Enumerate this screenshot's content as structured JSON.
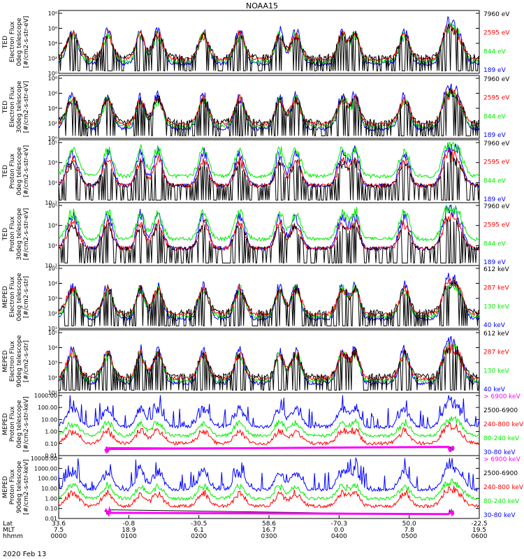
{
  "title": "NOAA15",
  "date_label": "2020 Feb 13",
  "colors": {
    "black": "#000000",
    "red": "#ff0000",
    "green": "#00ee00",
    "blue": "#0000ff",
    "magenta": "#ff00ff"
  },
  "xaxis": {
    "row_labels": [
      "Lat",
      "MLT",
      "hhmm"
    ],
    "ticks": [
      {
        "lat": "33.6",
        "mlt": "7.5",
        "hhmm": "0000"
      },
      {
        "lat": "-0.8",
        "mlt": "18.9",
        "hhmm": "0100"
      },
      {
        "lat": "-30.5",
        "mlt": "6.1",
        "hhmm": "0200"
      },
      {
        "lat": "58.6",
        "mlt": "16.7",
        "hhmm": "0300"
      },
      {
        "lat": "-70.3",
        "mlt": "0.0",
        "hhmm": "0400"
      },
      {
        "lat": "50.0",
        "mlt": "7.8",
        "hhmm": "0500"
      },
      {
        "lat": "-22.5",
        "mlt": "19.5",
        "hhmm": "0600"
      }
    ]
  },
  "panels": [
    {
      "ylabel": [
        "TED",
        "Electron Flux",
        "0deg telescope",
        "[#/cm2-s-str-eV]"
      ],
      "tick_labels": [
        "10⁰",
        "10²",
        "10⁴",
        "10⁶",
        "10⁸"
      ],
      "legend": [
        {
          "text": "7960 eV",
          "color": "black"
        },
        {
          "text": "2595 eV",
          "color": "red"
        },
        {
          "text": "844 eV",
          "color": "green"
        },
        {
          "text": "189 eV",
          "color": "blue"
        }
      ]
    },
    {
      "ylabel": [
        "TED",
        "Electron Flux",
        "30deg telescope",
        "[#/cm2-s-str-eV]"
      ],
      "tick_labels": [
        "10⁰",
        "10²",
        "10⁴",
        "10⁶",
        "10⁸"
      ],
      "legend": [
        {
          "text": "7960 eV",
          "color": "black"
        },
        {
          "text": "2595 eV",
          "color": "red"
        },
        {
          "text": "844 eV",
          "color": "green"
        },
        {
          "text": "189 eV",
          "color": "blue"
        }
      ]
    },
    {
      "ylabel": [
        "TED",
        "Proton Flux",
        "0deg telescope",
        "[#/cm2-s-str-eV]"
      ],
      "tick_labels": [
        "10⁻¹",
        "10¹",
        "10³",
        "10⁵"
      ],
      "legend": [
        {
          "text": "7960 eV",
          "color": "black"
        },
        {
          "text": "2595 eV",
          "color": "red"
        },
        {
          "text": "844 eV",
          "color": "green"
        },
        {
          "text": "189 eV",
          "color": "blue"
        }
      ]
    },
    {
      "ylabel": [
        "TED",
        "Proton Flux",
        "30deg telescope",
        "[#/cm2-s-str-eV]"
      ],
      "tick_labels": [
        "10⁻¹",
        "10¹",
        "10³",
        "10⁵"
      ],
      "legend": [
        {
          "text": "7960 eV",
          "color": "black"
        },
        {
          "text": "2595 eV",
          "color": "red"
        },
        {
          "text": "844 eV",
          "color": "green"
        },
        {
          "text": "189 eV",
          "color": "blue"
        }
      ]
    },
    {
      "ylabel": [
        "MEPED",
        "Electron Flux",
        "0deg telescope",
        "[#/cm2-s-str]"
      ],
      "tick_labels": [
        "10¹",
        "10²",
        "10³",
        "10⁴",
        "10⁵"
      ],
      "legend": [
        {
          "text": "612 keV",
          "color": "black"
        },
        {
          "text": "287 keV",
          "color": "red"
        },
        {
          "text": "130 keV",
          "color": "green"
        },
        {
          "text": "40 keV",
          "color": "blue"
        }
      ]
    },
    {
      "ylabel": [
        "MEPED",
        "Electron Flux",
        "90deg telescope",
        "[#/cm2-s-str]"
      ],
      "tick_labels": [
        "10¹",
        "10²",
        "10³",
        "10⁴",
        "10⁵"
      ],
      "legend": [
        {
          "text": "612 keV",
          "color": "black"
        },
        {
          "text": "287 keV",
          "color": "red"
        },
        {
          "text": "130 keV",
          "color": "green"
        },
        {
          "text": "40 keV",
          "color": "blue"
        }
      ]
    },
    {
      "ylabel": [
        "MEPED",
        "Proton Flux",
        "0deg telescope",
        "[#/cm2-s-str-keV]"
      ],
      "tick_labels": [
        "0.01",
        "0.10",
        "1.00",
        "10.00",
        "100.00",
        "1000.00"
      ],
      "legend": [
        {
          "text": "> 6900 keV",
          "color": "magenta"
        },
        {
          "text": "2500-6900",
          "color": "black"
        },
        {
          "text": "240-800 keV",
          "color": "red"
        },
        {
          "text": "80-240 keV",
          "color": "green"
        },
        {
          "text": "30-80 keV",
          "color": "blue"
        }
      ]
    },
    {
      "ylabel": [
        "MEPED",
        "Proton Flux",
        "90deg telescope",
        "[#/cm2-s-str-keV]"
      ],
      "tick_labels": [
        "0.01",
        "0.10",
        "1.00",
        "10.00",
        "100.00",
        "1000.00",
        "10000.00"
      ],
      "legend": [
        {
          "text": "> 6900 keV",
          "color": "magenta"
        },
        {
          "text": "2500-6900",
          "color": "black"
        },
        {
          "text": "240-800 keV",
          "color": "red"
        },
        {
          "text": "80-240 keV",
          "color": "green"
        },
        {
          "text": "30-80 keV",
          "color": "blue"
        }
      ]
    }
  ],
  "chart_data": {
    "type": "line",
    "title": "NOAA15",
    "x_range": [
      "0000",
      "0600"
    ],
    "pass_peaks_hhmm": [
      "0012",
      "0042",
      "0110",
      "0125",
      "0204",
      "0235",
      "0309",
      "0323",
      "0403",
      "0414",
      "0456",
      "0532",
      "0541"
    ],
    "panels": [
      {
        "name": "TED Electron Flux 0deg telescope",
        "ylim": [
          1,
          100000000
        ],
        "log": true,
        "series": [
          "7960 eV",
          "2595 eV",
          "844 eV",
          "189 eV"
        ]
      },
      {
        "name": "TED Electron Flux 30deg telescope",
        "ylim": [
          1,
          100000000
        ],
        "log": true,
        "series": [
          "7960 eV",
          "2595 eV",
          "844 eV",
          "189 eV"
        ]
      },
      {
        "name": "TED Proton Flux 0deg telescope",
        "ylim": [
          0.1,
          100000
        ],
        "log": true,
        "series": [
          "7960 eV",
          "2595 eV",
          "844 eV",
          "189 eV"
        ]
      },
      {
        "name": "TED Proton Flux 30deg telescope",
        "ylim": [
          0.1,
          100000
        ],
        "log": true,
        "series": [
          "7960 eV",
          "2595 eV",
          "844 eV",
          "189 eV"
        ]
      },
      {
        "name": "MEPED Electron Flux 0deg telescope",
        "ylim": [
          10,
          100000
        ],
        "log": true,
        "series": [
          "612 keV",
          "287 keV",
          "130 keV",
          "40 keV"
        ]
      },
      {
        "name": "MEPED Electron Flux 90deg telescope",
        "ylim": [
          10,
          100000
        ],
        "log": true,
        "series": [
          "612 keV",
          "287 keV",
          "130 keV",
          "40 keV"
        ]
      },
      {
        "name": "MEPED Proton Flux 0deg telescope",
        "ylim": [
          0.01,
          1000
        ],
        "log": true,
        "series": [
          "> 6900 keV",
          "2500-6900",
          "240-800 keV",
          "80-240 keV",
          "30-80 keV"
        ]
      },
      {
        "name": "MEPED Proton Flux 90deg telescope",
        "ylim": [
          0.01,
          10000
        ],
        "log": true,
        "series": [
          "> 6900 keV",
          "2500-6900",
          "240-800 keV",
          "80-240 keV",
          "30-80 keV"
        ]
      }
    ]
  }
}
